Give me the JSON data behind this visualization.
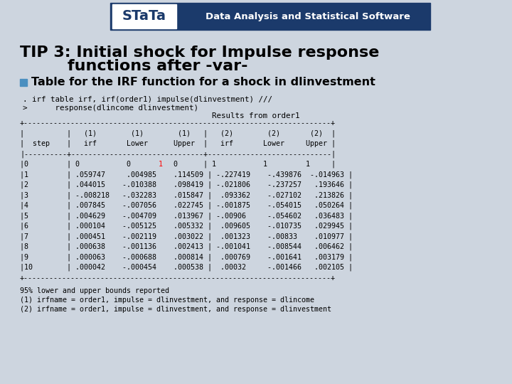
{
  "title_line1": "TIP 3: Initial shock for Impulse response",
  "title_line2": "functions after -var-",
  "bullet_text": "Table for the IRF function for a shock in dlinvestment",
  "cmd_line1": ". irf table irf, irf(order1) impulse(dlinvestment) ///",
  "cmd_line2": ">      response(dlincome dlinvestment)",
  "results_title": "Results from order1",
  "bg_color": "#cdd5df",
  "banner_color": "#1b3a6b",
  "stata_white": "#ffffff",
  "bullet_color": "#4a8fc0",
  "red_color": "#ff0000",
  "table_lines": [
    "+------------------------------------------------------------------------+",
    "|          |   (1)        (1)        (1)   |   (2)        (2)       (2)  |",
    "|  step    |   irf       Lower      Upper  |   irf       Lower     Upper |",
    "|----------+-------------------------------+------------------------------|",
    "|0         | 0           0          0       | 1           1         1    |",
    "|1         | .059747     .004985    .114509  | -.227419    -.439876  -.014963 |",
    "|2         | .044015     -.010388   .098419  | -.021806    -.237257   .193646 |",
    "|3         | -.008218    -.032283   .015847  |  .093362    -.027102   .213826 |",
    "|4         | .007845     -.007056   .022745  | -.001875    -.054015   .050264 |",
    "|5         | .004629     -.004709   .013967  | -.00906     -.054602   .036483 |",
    "|6         | .000104     -.005125   .005332  |  .009605    -.010735   .029945 |",
    "|7         | .000451     -.002119   .003022  |  .001323    -.00833    .010977 |",
    "|8         | .000638     -.001136   .002413  | -.001041    -.008544   .006462 |",
    "|9         | .000063     -.000688   .000814  |  .000769    -.001641   .003179 |",
    "|10        | .000042     -.000454   .000538  |  .00032     -.001466   .002105 |",
    "+------------------------------------------------------------------------+"
  ],
  "footer_lines": [
    "95% lower and upper bounds reported",
    "(1) irfname = order1, impulse = dlinvestment, and response = dlincome",
    "(2) irfname = order1, impulse = dlinvestment, and response = dlinvestment"
  ]
}
